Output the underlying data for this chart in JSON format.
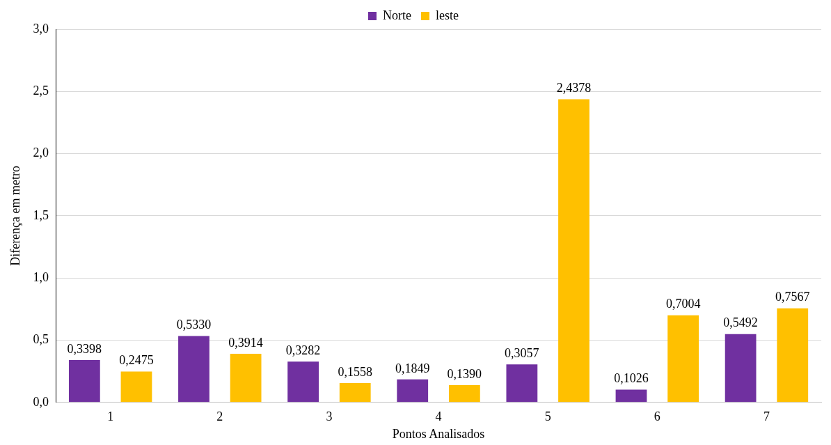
{
  "chart_data": {
    "type": "bar",
    "xlabel": "Pontos Analisados",
    "ylabel": "Diferença em metro",
    "categories": [
      "1",
      "2",
      "3",
      "4",
      "5",
      "6",
      "7"
    ],
    "series": [
      {
        "name": "Norte",
        "color": "#7030a0",
        "values": [
          0.3398,
          0.533,
          0.3282,
          0.1849,
          0.3057,
          0.1026,
          0.5492
        ],
        "value_labels": [
          "0,3398",
          "0,5330",
          "0,3282",
          "0,1849",
          "0,3057",
          "0,1026",
          "0,5492"
        ]
      },
      {
        "name": "leste",
        "color": "#ffc000",
        "values": [
          0.2475,
          0.3914,
          0.1558,
          0.139,
          2.4378,
          0.7004,
          0.7567
        ],
        "value_labels": [
          "0,2475",
          "0,3914",
          "0,1558",
          "0,1390",
          "2,4378",
          "0,7004",
          "0,7567"
        ]
      }
    ],
    "ylim": [
      0,
      3
    ],
    "yticks": [
      {
        "value": 0,
        "label": "0,0"
      },
      {
        "value": 0.5,
        "label": "0,5"
      },
      {
        "value": 1,
        "label": "1,0"
      },
      {
        "value": 1.5,
        "label": "1,5"
      },
      {
        "value": 2,
        "label": "2,0"
      },
      {
        "value": 2.5,
        "label": "2,5"
      },
      {
        "value": 3,
        "label": "3,0"
      }
    ],
    "grid": "y",
    "legend": "top"
  }
}
